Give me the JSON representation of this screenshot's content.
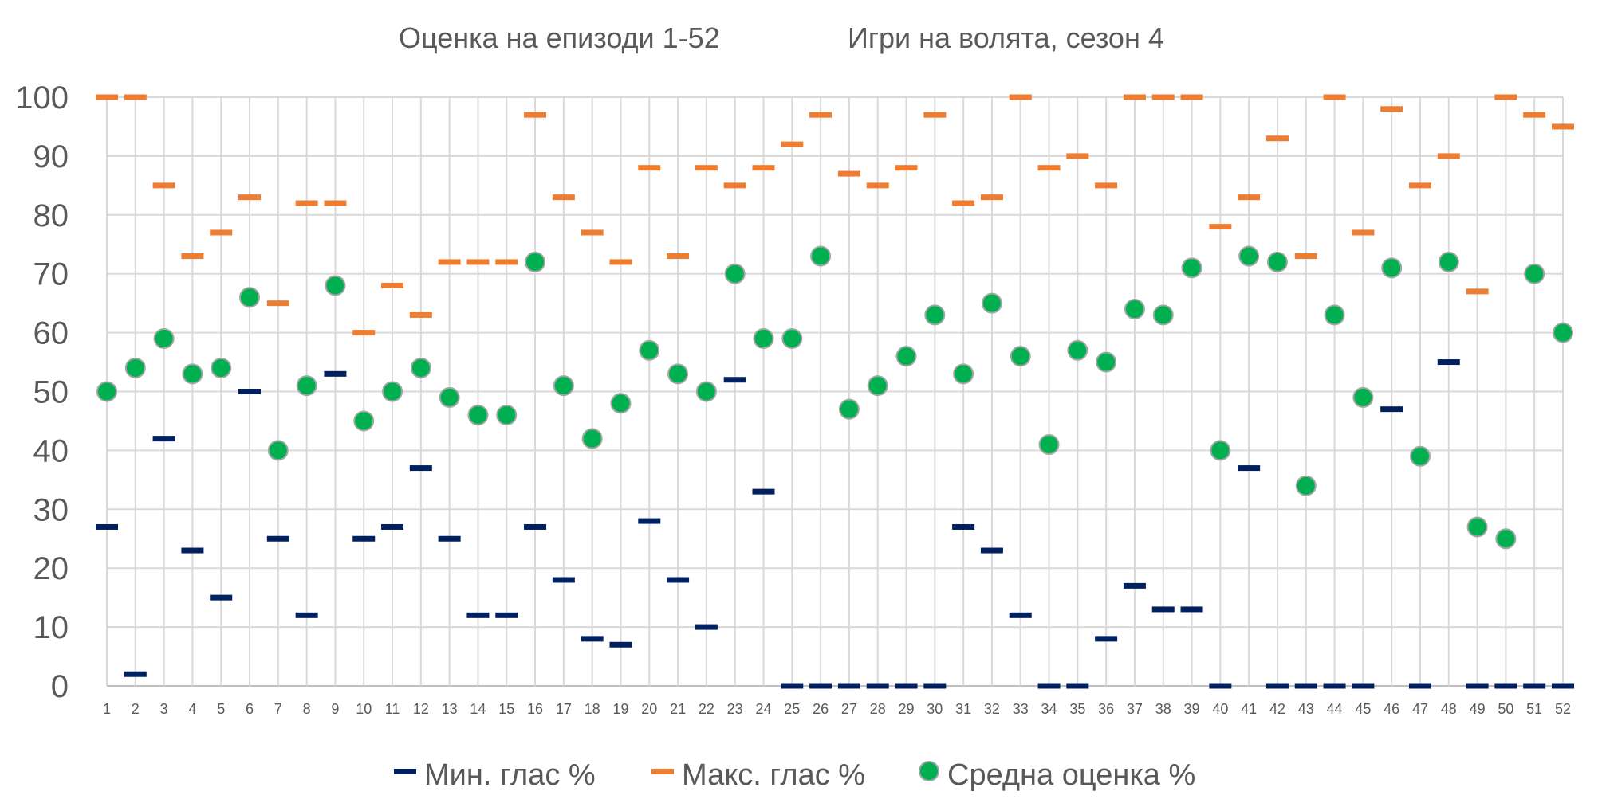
{
  "chart_data": {
    "type": "scatter",
    "title": "Оценка на епизоди 1-52",
    "subtitle": "Игри на волята, сезон 4",
    "xlabel": "",
    "ylabel": "",
    "ylim": [
      0,
      100
    ],
    "yticks": [
      "0",
      "10",
      "20",
      "30",
      "40",
      "50",
      "60",
      "70",
      "80",
      "90",
      "100"
    ],
    "grid": true,
    "legend_position": "bottom",
    "x": [
      1,
      2,
      3,
      4,
      5,
      6,
      7,
      8,
      9,
      10,
      11,
      12,
      13,
      14,
      15,
      16,
      17,
      18,
      19,
      20,
      21,
      22,
      23,
      24,
      25,
      26,
      27,
      28,
      29,
      30,
      31,
      32,
      33,
      34,
      35,
      36,
      37,
      38,
      39,
      40,
      41,
      42,
      43,
      44,
      45,
      46,
      47,
      48,
      49,
      50,
      51,
      52
    ],
    "series": [
      {
        "name": "Мин. глас %",
        "marker": "dash",
        "color": "#002060",
        "values": [
          27,
          2,
          42,
          23,
          15,
          50,
          25,
          12,
          53,
          25,
          27,
          37,
          25,
          12,
          12,
          27,
          18,
          8,
          7,
          28,
          18,
          10,
          52,
          33,
          0,
          0,
          0,
          0,
          0,
          0,
          27,
          23,
          12,
          0,
          0,
          8,
          17,
          13,
          13,
          0,
          37,
          0,
          0,
          0,
          0,
          47,
          0,
          55,
          0,
          0,
          0,
          0
        ]
      },
      {
        "name": "Макс. глас %",
        "marker": "dash",
        "color": "#ED7D31",
        "values": [
          100,
          100,
          85,
          73,
          77,
          83,
          65,
          82,
          82,
          60,
          68,
          63,
          72,
          72,
          72,
          97,
          83,
          77,
          72,
          88,
          73,
          88,
          85,
          88,
          92,
          97,
          87,
          85,
          88,
          97,
          82,
          83,
          100,
          88,
          90,
          85,
          100,
          100,
          100,
          78,
          83,
          93,
          73,
          100,
          77,
          98,
          85,
          90,
          67,
          100,
          97,
          95
        ]
      },
      {
        "name": "Средна оценка %",
        "marker": "circle",
        "color": "#00B050",
        "values": [
          50,
          54,
          59,
          53,
          54,
          66,
          40,
          51,
          68,
          45,
          50,
          54,
          49,
          46,
          46,
          72,
          51,
          42,
          48,
          57,
          53,
          50,
          70,
          59,
          59,
          73,
          47,
          51,
          56,
          63,
          53,
          65,
          56,
          41,
          57,
          55,
          64,
          63,
          71,
          40,
          73,
          72,
          34,
          63,
          49,
          71,
          39,
          72,
          27,
          25,
          70,
          60
        ]
      }
    ]
  }
}
